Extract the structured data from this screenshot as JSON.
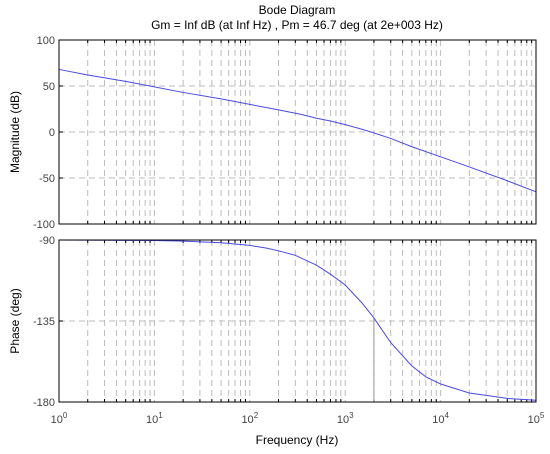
{
  "title": "Bode Diagram",
  "subtitle": "Gm = Inf dB (at Inf Hz) ,  Pm = 46.7 deg (at 2e+003 Hz)",
  "colors": {
    "curve": "#4a4ae6",
    "marker": "#999999",
    "grid": "#bdbdbd",
    "frame": "#000000"
  },
  "chart_data": [
    {
      "type": "line",
      "panel": "magnitude",
      "ylabel": "Magnitude (dB)",
      "x_scale": "log",
      "xlim": [
        1,
        100000
      ],
      "ylim": [
        -100,
        100
      ],
      "yticks": [
        100,
        50,
        0,
        -50,
        -100
      ],
      "grid": true,
      "series": [
        {
          "x": [
            1,
            2,
            5,
            10,
            20,
            50,
            100,
            200,
            350,
            500,
            700,
            1000,
            1500,
            2000,
            3000,
            5000,
            10000,
            20000,
            50000,
            100000
          ],
          "y": [
            68,
            62,
            55,
            49,
            43,
            36,
            30,
            24,
            19,
            15,
            12,
            8,
            3,
            -1,
            -7,
            -16,
            -27,
            -38,
            -53,
            -65
          ]
        }
      ]
    },
    {
      "type": "line",
      "panel": "phase",
      "ylabel": "Phase (deg)",
      "xlabel": "Frequency  (Hz)",
      "x_scale": "log",
      "xlim": [
        1,
        100000
      ],
      "ylim": [
        -180,
        -90
      ],
      "yticks": [
        -90,
        -135,
        -180
      ],
      "xtick_exponents": [
        0,
        1,
        2,
        3,
        4,
        5
      ],
      "grid": true,
      "phase_margin_marker": {
        "x": 2000,
        "y": -133.3
      },
      "series": [
        {
          "x": [
            1,
            10,
            20,
            50,
            100,
            150,
            200,
            300,
            500,
            700,
            1000,
            1500,
            2000,
            3000,
            5000,
            7000,
            10000,
            20000,
            50000,
            100000
          ],
          "y": [
            -90,
            -90.3,
            -90.6,
            -91.5,
            -93,
            -94.5,
            -96,
            -98.5,
            -104,
            -109,
            -115,
            -125,
            -133.3,
            -147,
            -160,
            -166,
            -170,
            -175,
            -178,
            -179
          ]
        }
      ]
    }
  ]
}
